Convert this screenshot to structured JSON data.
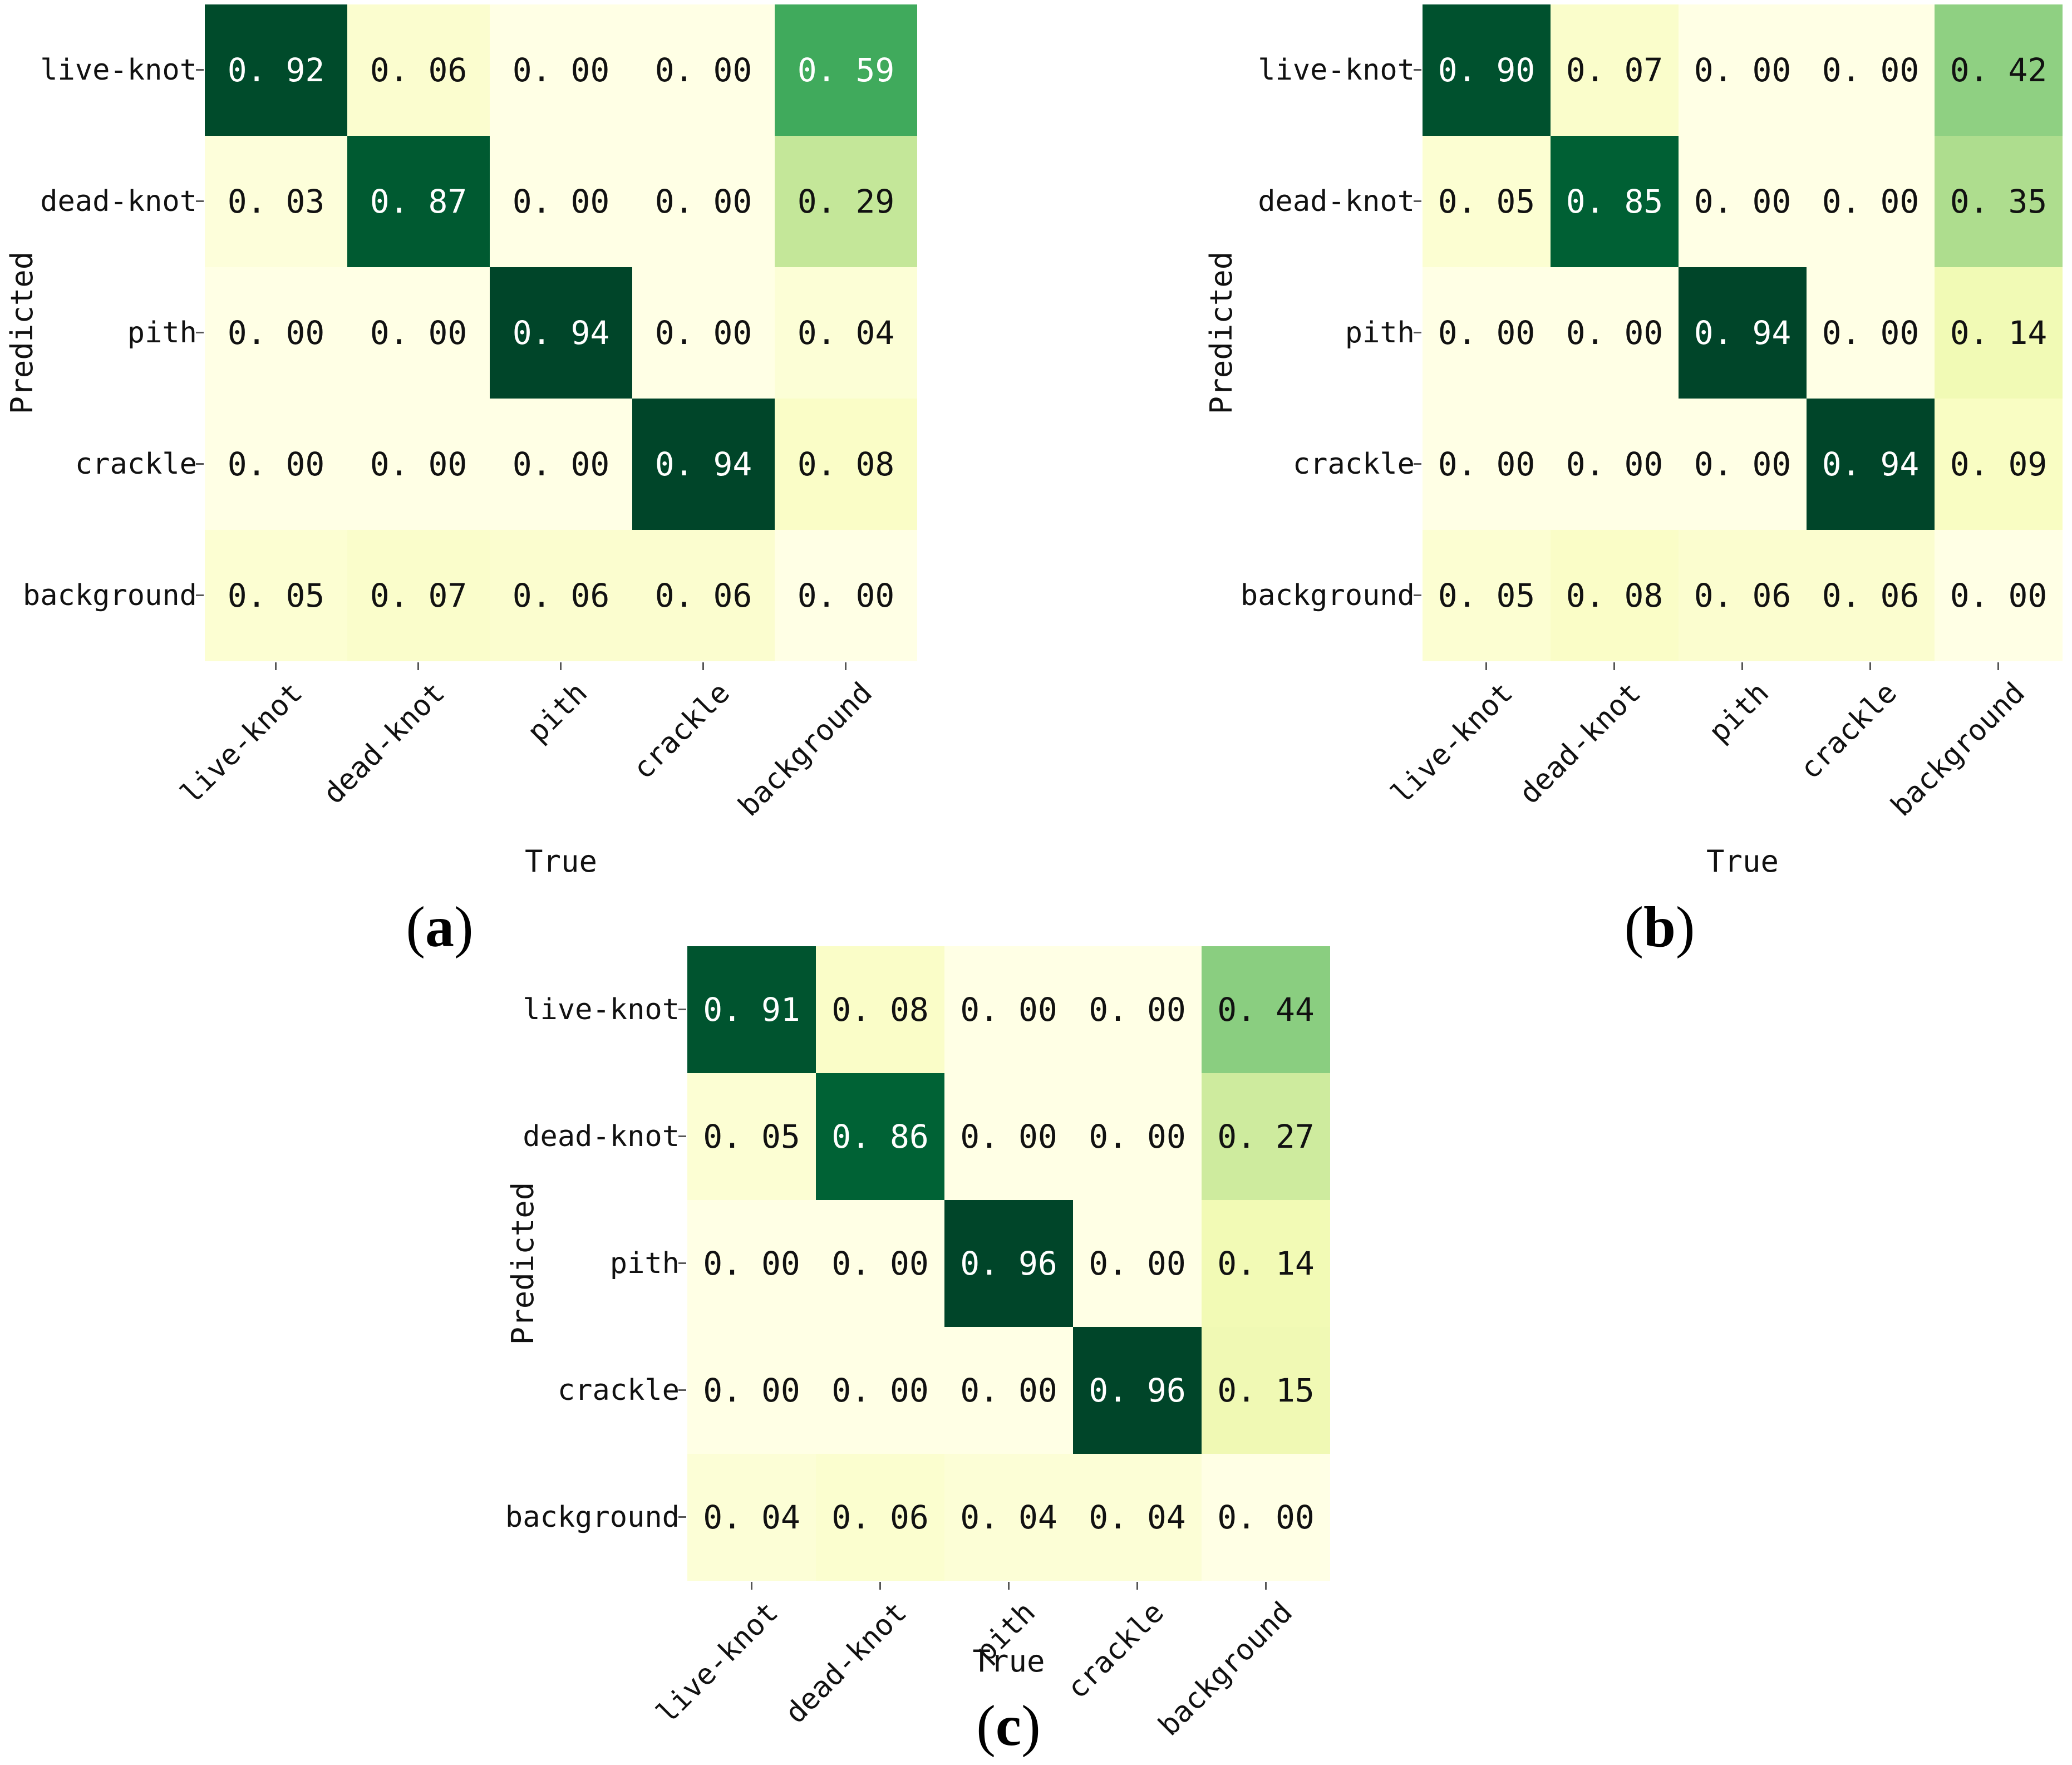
{
  "figure": {
    "background_color": "#ffffff",
    "label_color": "#111111",
    "cell_text_dark": "#111111",
    "cell_text_light": "#ffffff",
    "tick_color": "#555555",
    "colormap": {
      "name": "YlGn",
      "anchors": [
        [
          0.0,
          "#ffffe5"
        ],
        [
          0.125,
          "#f7fcb9"
        ],
        [
          0.25,
          "#d9f0a3"
        ],
        [
          0.375,
          "#addd8e"
        ],
        [
          0.5,
          "#78c679"
        ],
        [
          0.625,
          "#41ab5d"
        ],
        [
          0.75,
          "#238443"
        ],
        [
          0.875,
          "#006837"
        ],
        [
          1.0,
          "#004529"
        ]
      ]
    }
  },
  "chart_data": [
    {
      "type": "heatmap",
      "caption": "(a)",
      "xlabel": "True",
      "ylabel": "Predicted",
      "x_categories": [
        "live-knot",
        "dead-knot",
        "pith",
        "crackle",
        "background"
      ],
      "y_categories": [
        "live-knot",
        "dead-knot",
        "pith",
        "crackle",
        "background"
      ],
      "values": [
        [
          0.92,
          0.06,
          0.0,
          0.0,
          0.59
        ],
        [
          0.03,
          0.87,
          0.0,
          0.0,
          0.29
        ],
        [
          0.0,
          0.0,
          0.94,
          0.0,
          0.04
        ],
        [
          0.0,
          0.0,
          0.0,
          0.94,
          0.08
        ],
        [
          0.05,
          0.07,
          0.06,
          0.06,
          0.0
        ]
      ],
      "vmin": 0.0,
      "vmax": 0.94,
      "legend": "none",
      "grid": "off"
    },
    {
      "type": "heatmap",
      "caption": "(b)",
      "xlabel": "True",
      "ylabel": "Predicted",
      "x_categories": [
        "live-knot",
        "dead-knot",
        "pith",
        "crackle",
        "background"
      ],
      "y_categories": [
        "live-knot",
        "dead-knot",
        "pith",
        "crackle",
        "background"
      ],
      "values": [
        [
          0.9,
          0.07,
          0.0,
          0.0,
          0.42
        ],
        [
          0.05,
          0.85,
          0.0,
          0.0,
          0.35
        ],
        [
          0.0,
          0.0,
          0.94,
          0.0,
          0.14
        ],
        [
          0.0,
          0.0,
          0.0,
          0.94,
          0.09
        ],
        [
          0.05,
          0.08,
          0.06,
          0.06,
          0.0
        ]
      ],
      "vmin": 0.0,
      "vmax": 0.94,
      "legend": "none",
      "grid": "off"
    },
    {
      "type": "heatmap",
      "caption": "(c)",
      "xlabel": "True",
      "ylabel": "Predicted",
      "x_categories": [
        "live-knot",
        "dead-knot",
        "pith",
        "crackle",
        "background"
      ],
      "y_categories": [
        "live-knot",
        "dead-knot",
        "pith",
        "crackle",
        "background"
      ],
      "values": [
        [
          0.91,
          0.08,
          0.0,
          0.0,
          0.44
        ],
        [
          0.05,
          0.86,
          0.0,
          0.0,
          0.27
        ],
        [
          0.0,
          0.0,
          0.96,
          0.0,
          0.14
        ],
        [
          0.0,
          0.0,
          0.0,
          0.96,
          0.15
        ],
        [
          0.04,
          0.06,
          0.04,
          0.04,
          0.0
        ]
      ],
      "vmin": 0.0,
      "vmax": 0.96,
      "legend": "none",
      "grid": "off"
    }
  ]
}
